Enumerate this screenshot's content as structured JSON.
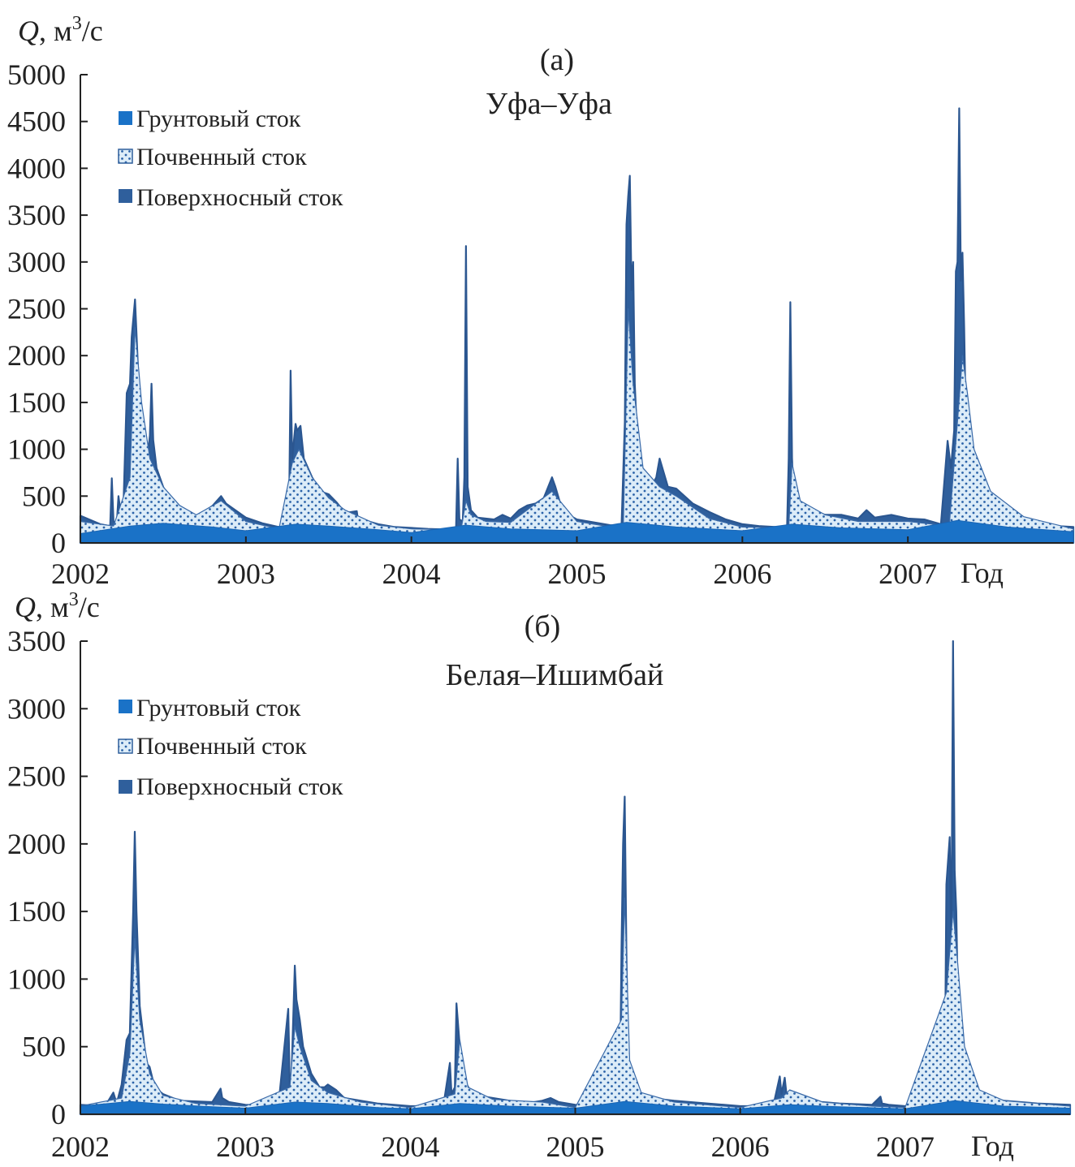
{
  "chart_data": [
    {
      "type": "area",
      "panel": "(a)",
      "title": "Уфа–Уфа",
      "ylabel_var": "Q",
      "ylabel_unit": ", м",
      "ylabel_sup": "3",
      "ylabel_tail": "/с",
      "xlabel": "Год",
      "ylim": [
        0,
        5000
      ],
      "xlim": [
        2002,
        2008
      ],
      "yticks": [
        "0",
        "500",
        "1000",
        "1500",
        "2000",
        "2500",
        "3000",
        "3500",
        "4000",
        "4500",
        "5000"
      ],
      "xticks": [
        "2002",
        "2003",
        "2004",
        "2005",
        "2006",
        "2007"
      ],
      "legend": [
        "Грунтовый сток",
        "Почвенный сток",
        "Поверхносный сток"
      ],
      "legend_position": "top-left",
      "colors": {
        "ground": "#1a72c7",
        "soil_fill": "#dcecf8",
        "soil_dot": "#2a62a8",
        "surface": "#2f5f9c"
      },
      "series": [
        {
          "name": "Поверхносный сток",
          "x": [
            2002.0,
            2002.12,
            2002.18,
            2002.19,
            2002.2,
            2002.22,
            2002.23,
            2002.25,
            2002.26,
            2002.28,
            2002.3,
            2002.31,
            2002.33,
            2002.35,
            2002.37,
            2002.4,
            2002.42,
            2002.43,
            2002.44,
            2002.46,
            2002.5,
            2002.55,
            2002.6,
            2002.65,
            2002.7,
            2002.75,
            2002.8,
            2002.85,
            2002.88,
            2002.92,
            2003.0,
            2003.1,
            2003.2,
            2003.26,
            2003.27,
            2003.28,
            2003.3,
            2003.31,
            2003.33,
            2003.35,
            2003.4,
            2003.45,
            2003.5,
            2003.55,
            2003.6,
            2003.67,
            2003.68,
            2003.7,
            2003.8,
            2003.9,
            2004.0,
            2004.1,
            2004.2,
            2004.27,
            2004.28,
            2004.29,
            2004.31,
            2004.32,
            2004.33,
            2004.34,
            2004.36,
            2004.4,
            2004.45,
            2004.5,
            2004.55,
            2004.6,
            2004.65,
            2004.7,
            2004.75,
            2004.8,
            2004.85,
            2004.87,
            2004.9,
            2004.95,
            2005.0,
            2005.1,
            2005.2,
            2005.27,
            2005.29,
            2005.3,
            2005.31,
            2005.32,
            2005.33,
            2005.34,
            2005.35,
            2005.37,
            2005.4,
            2005.45,
            2005.48,
            2005.5,
            2005.55,
            2005.6,
            2005.7,
            2005.8,
            2005.9,
            2006.0,
            2006.1,
            2006.2,
            2006.27,
            2006.28,
            2006.29,
            2006.3,
            2006.31,
            2006.33,
            2006.35,
            2006.4,
            2006.45,
            2006.5,
            2006.6,
            2006.7,
            2006.75,
            2006.8,
            2006.9,
            2007.0,
            2007.1,
            2007.2,
            2007.24,
            2007.26,
            2007.28,
            2007.29,
            2007.3,
            2007.31,
            2007.32,
            2007.33,
            2007.34,
            2007.35,
            2007.37,
            2007.4,
            2007.45,
            2007.5,
            2007.6,
            2007.7,
            2007.8,
            2007.9,
            2008.0
          ],
          "values": [
            290,
            200,
            180,
            690,
            230,
            200,
            500,
            230,
            380,
            1600,
            1700,
            2200,
            2600,
            1800,
            1100,
            800,
            1150,
            1700,
            1100,
            800,
            600,
            420,
            330,
            310,
            270,
            330,
            400,
            500,
            420,
            370,
            270,
            210,
            170,
            160,
            1840,
            900,
            1270,
            1200,
            1250,
            900,
            700,
            550,
            520,
            430,
            320,
            340,
            220,
            250,
            200,
            170,
            160,
            150,
            145,
            160,
            900,
            250,
            230,
            700,
            3170,
            600,
            350,
            270,
            260,
            250,
            300,
            260,
            350,
            400,
            420,
            480,
            700,
            600,
            420,
            300,
            250,
            220,
            190,
            180,
            1300,
            3400,
            3700,
            3920,
            2700,
            3000,
            1700,
            900,
            700,
            600,
            700,
            900,
            600,
            580,
            420,
            330,
            250,
            200,
            180,
            170,
            180,
            900,
            2570,
            900,
            500,
            400,
            350,
            350,
            330,
            300,
            300,
            260,
            350,
            270,
            300,
            260,
            250,
            200,
            1090,
            800,
            1200,
            2900,
            3000,
            4640,
            2800,
            3100,
            2300,
            1300,
            1000,
            800,
            600,
            450,
            300,
            250,
            210,
            180,
            170
          ]
        },
        {
          "name": "Почвенный сток",
          "x": [
            2002.0,
            2002.2,
            2002.3,
            2002.33,
            2002.37,
            2002.42,
            2002.5,
            2002.6,
            2002.7,
            2002.85,
            2003.0,
            2003.2,
            2003.28,
            2003.32,
            2003.4,
            2003.5,
            2003.6,
            2003.8,
            2004.0,
            2004.3,
            2004.33,
            2004.36,
            2004.45,
            2004.6,
            2004.85,
            2005.0,
            2005.28,
            2005.31,
            2005.34,
            2005.4,
            2005.5,
            2005.6,
            2005.8,
            2006.0,
            2006.28,
            2006.3,
            2006.35,
            2006.5,
            2006.7,
            2007.0,
            2007.25,
            2007.3,
            2007.33,
            2007.36,
            2007.4,
            2007.5,
            2007.7,
            2008.0
          ],
          "values": [
            230,
            180,
            700,
            2300,
            1500,
            900,
            600,
            400,
            300,
            450,
            230,
            150,
            850,
            1000,
            700,
            480,
            350,
            190,
            150,
            140,
            450,
            300,
            230,
            220,
            550,
            230,
            150,
            2500,
            1700,
            800,
            600,
            500,
            260,
            170,
            160,
            850,
            450,
            300,
            230,
            230,
            180,
            1300,
            2000,
            1600,
            1000,
            550,
            280,
            150
          ]
        },
        {
          "name": "Грунтовый сток",
          "x": [
            2002.0,
            2002.3,
            2002.5,
            2002.8,
            2003.0,
            2003.3,
            2003.5,
            2003.8,
            2004.0,
            2004.33,
            2004.6,
            2005.0,
            2005.3,
            2005.6,
            2006.0,
            2006.3,
            2006.6,
            2007.0,
            2007.3,
            2007.6,
            2008.0
          ],
          "values": [
            100,
            180,
            210,
            170,
            130,
            200,
            180,
            140,
            110,
            190,
            150,
            130,
            220,
            170,
            130,
            200,
            160,
            140,
            240,
            170,
            120
          ]
        }
      ]
    },
    {
      "type": "area",
      "panel": "(б)",
      "title": "Белая–Ишимбай",
      "ylabel_var": "Q",
      "ylabel_unit": ", м",
      "ylabel_sup": "3",
      "ylabel_tail": "/с",
      "xlabel": "Год",
      "ylim": [
        0,
        3500
      ],
      "xlim": [
        2002,
        2008
      ],
      "yticks": [
        "0",
        "500",
        "1000",
        "1500",
        "2000",
        "2500",
        "3000",
        "3500"
      ],
      "xticks": [
        "2002",
        "2003",
        "2004",
        "2005",
        "2006",
        "2007"
      ],
      "legend": [
        "Грунтовый сток",
        "Почвенный сток",
        "Поверхносный сток"
      ],
      "legend_position": "top-left",
      "colors": {
        "ground": "#1a72c7",
        "soil_fill": "#dcecf8",
        "soil_dot": "#2a62a8",
        "surface": "#2f5f9c"
      },
      "series": [
        {
          "name": "Поверхносный сток",
          "x": [
            2002.0,
            2002.15,
            2002.2,
            2002.22,
            2002.25,
            2002.28,
            2002.3,
            2002.32,
            2002.33,
            2002.34,
            2002.36,
            2002.4,
            2002.42,
            2002.45,
            2002.5,
            2002.6,
            2002.8,
            2002.85,
            2002.86,
            2002.9,
            2003.0,
            2003.2,
            2003.26,
            2003.27,
            2003.28,
            2003.3,
            2003.31,
            2003.33,
            2003.35,
            2003.4,
            2003.45,
            2003.48,
            2003.5,
            2003.55,
            2003.6,
            2003.8,
            2004.0,
            2004.2,
            2004.24,
            2004.25,
            2004.27,
            2004.28,
            2004.3,
            2004.31,
            2004.33,
            2004.36,
            2004.4,
            2004.5,
            2004.7,
            2004.8,
            2004.85,
            2004.9,
            2005.0,
            2005.2,
            2005.27,
            2005.28,
            2005.29,
            2005.3,
            2005.31,
            2005.32,
            2005.33,
            2005.35,
            2005.38,
            2005.45,
            2005.6,
            2005.8,
            2006.0,
            2006.2,
            2006.24,
            2006.25,
            2006.27,
            2006.28,
            2006.3,
            2006.35,
            2006.4,
            2006.5,
            2006.6,
            2006.8,
            2006.85,
            2006.86,
            2006.9,
            2007.0,
            2007.2,
            2007.24,
            2007.25,
            2007.27,
            2007.28,
            2007.29,
            2007.3,
            2007.31,
            2007.32,
            2007.34,
            2007.37,
            2007.4,
            2007.5,
            2007.6,
            2007.8,
            2008.0
          ],
          "values": [
            70,
            60,
            160,
            80,
            220,
            550,
            600,
            1500,
            2090,
            1500,
            800,
            380,
            350,
            200,
            150,
            100,
            90,
            190,
            120,
            90,
            70,
            60,
            780,
            200,
            300,
            1100,
            850,
            700,
            500,
            300,
            200,
            200,
            220,
            180,
            120,
            80,
            60,
            60,
            380,
            150,
            200,
            820,
            500,
            300,
            250,
            180,
            140,
            120,
            80,
            100,
            120,
            90,
            70,
            60,
            80,
            1200,
            2000,
            2350,
            1200,
            500,
            350,
            200,
            150,
            120,
            100,
            80,
            60,
            60,
            280,
            150,
            270,
            150,
            100,
            90,
            80,
            90,
            80,
            70,
            130,
            80,
            70,
            60,
            60,
            200,
            1700,
            2050,
            1200,
            3500,
            1800,
            1500,
            800,
            400,
            200,
            150,
            120,
            100,
            80,
            70
          ]
        },
        {
          "name": "Почвенный сток",
          "x": [
            2002.0,
            2002.25,
            2002.3,
            2002.33,
            2002.36,
            2002.42,
            2002.5,
            2002.7,
            2003.0,
            2003.27,
            2003.3,
            2003.33,
            2003.4,
            2003.5,
            2003.7,
            2004.0,
            2004.27,
            2004.3,
            2004.35,
            2004.5,
            2004.8,
            2005.0,
            2005.28,
            2005.3,
            2005.33,
            2005.4,
            2005.6,
            2006.0,
            2006.25,
            2006.3,
            2006.5,
            2006.8,
            2007.0,
            2007.25,
            2007.29,
            2007.32,
            2007.36,
            2007.45,
            2007.6,
            2008.0
          ],
          "values": [
            60,
            120,
            450,
            1300,
            700,
            300,
            140,
            80,
            60,
            200,
            650,
            500,
            250,
            160,
            90,
            50,
            150,
            550,
            200,
            110,
            90,
            50,
            700,
            1600,
            400,
            160,
            90,
            50,
            120,
            180,
            90,
            60,
            50,
            900,
            1500,
            1100,
            500,
            180,
            100,
            60
          ]
        },
        {
          "name": "Грунтовый сток",
          "x": [
            2002.0,
            2002.3,
            2002.5,
            2002.8,
            2003.0,
            2003.3,
            2003.5,
            2003.8,
            2004.0,
            2004.3,
            2004.6,
            2005.0,
            2005.3,
            2005.6,
            2006.0,
            2006.3,
            2006.6,
            2007.0,
            2007.3,
            2007.6,
            2008.0
          ],
          "values": [
            60,
            95,
            75,
            55,
            45,
            90,
            80,
            50,
            40,
            80,
            60,
            45,
            95,
            60,
            40,
            70,
            55,
            40,
            100,
            60,
            45
          ]
        }
      ]
    }
  ]
}
